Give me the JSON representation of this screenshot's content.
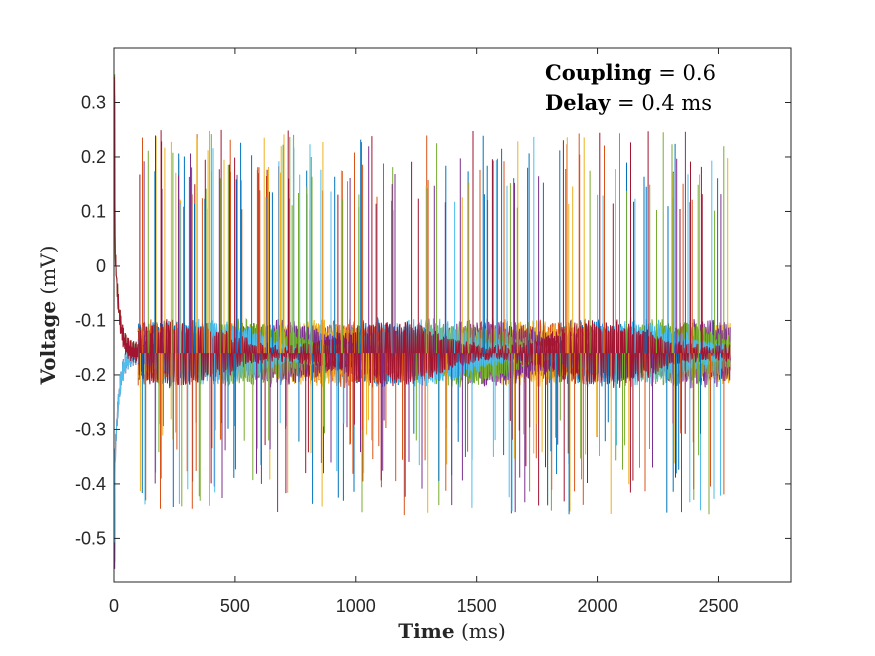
{
  "chart_data": {
    "type": "line",
    "xlabel": {
      "bold": "Time",
      "unit": "(ms)"
    },
    "ylabel": {
      "bold": "Voltage",
      "unit": "(mV)"
    },
    "xlim": [
      0,
      2800
    ],
    "ylim": [
      -0.58,
      0.4
    ],
    "xticks": [
      0,
      500,
      1000,
      1500,
      2000,
      2500
    ],
    "xtick_labels": [
      "0",
      "500",
      "1000",
      "1500",
      "2000",
      "2500"
    ],
    "yticks": [
      0.3,
      0.2,
      0.1,
      0,
      -0.1,
      -0.2,
      -0.3,
      -0.4,
      -0.5
    ],
    "ytick_labels": [
      "0.3",
      "0.2",
      "0.1",
      "0",
      "-0.1",
      "-0.2",
      "-0.3",
      "-0.4",
      "-0.5"
    ],
    "annotations": [
      {
        "bold": "Coupling",
        "rest": " = 0.6"
      },
      {
        "bold": "Delay",
        "rest": " = 0.4 ms"
      }
    ],
    "grid": false,
    "legend": "none",
    "time_range_ms": [
      0,
      2550
    ],
    "baseline_mV": -0.16,
    "spike_range_mV": [
      -0.46,
      0.25
    ],
    "initial_transient_mV": [
      -0.57,
      0.38
    ],
    "series_colors": [
      "#0072BD",
      "#D95319",
      "#EDB120",
      "#7E2F8E",
      "#77AC30",
      "#4DBEEE",
      "#A2142F"
    ]
  }
}
